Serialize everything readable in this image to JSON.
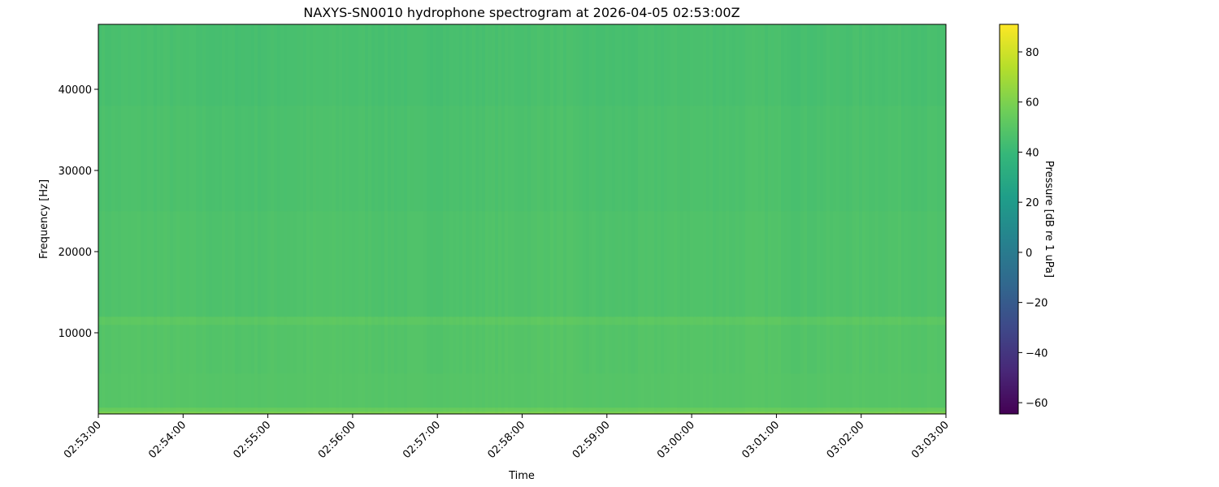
{
  "chart_data": {
    "type": "heatmap",
    "title": "NAXYS-SN0010 hydrophone spectrogram at 2026-04-05 02:53:00Z",
    "xlabel": "Time",
    "ylabel": "Frequency [Hz]",
    "x_ticks": [
      "02:53:00",
      "02:54:00",
      "02:55:00",
      "02:56:00",
      "02:57:00",
      "02:58:00",
      "02:59:00",
      "03:00:00",
      "03:01:00",
      "03:02:00",
      "03:03:00"
    ],
    "xlim": [
      "02:53:00",
      "03:03:00"
    ],
    "y_ticks": [
      10000,
      20000,
      30000,
      40000
    ],
    "ylim": [
      0,
      48000
    ],
    "colorbar": {
      "label": "Pressure [dB re 1 uPa]",
      "ticks": [
        -60,
        -40,
        -20,
        0,
        20,
        40,
        60,
        80
      ],
      "range": [
        -64.5,
        91
      ],
      "colormap": "viridis"
    },
    "frequency_profile_db": [
      {
        "from_hz": 0,
        "to_hz": 300,
        "db": 60
      },
      {
        "from_hz": 300,
        "to_hz": 800,
        "db": 54
      },
      {
        "from_hz": 800,
        "to_hz": 5000,
        "db": 49
      },
      {
        "from_hz": 5000,
        "to_hz": 11000,
        "db": 48.5
      },
      {
        "from_hz": 11000,
        "to_hz": 12000,
        "db": 51
      },
      {
        "from_hz": 12000,
        "to_hz": 25000,
        "db": 47
      },
      {
        "from_hz": 25000,
        "to_hz": 38000,
        "db": 46
      },
      {
        "from_hz": 38000,
        "to_hz": 48000,
        "db": 45
      }
    ]
  }
}
